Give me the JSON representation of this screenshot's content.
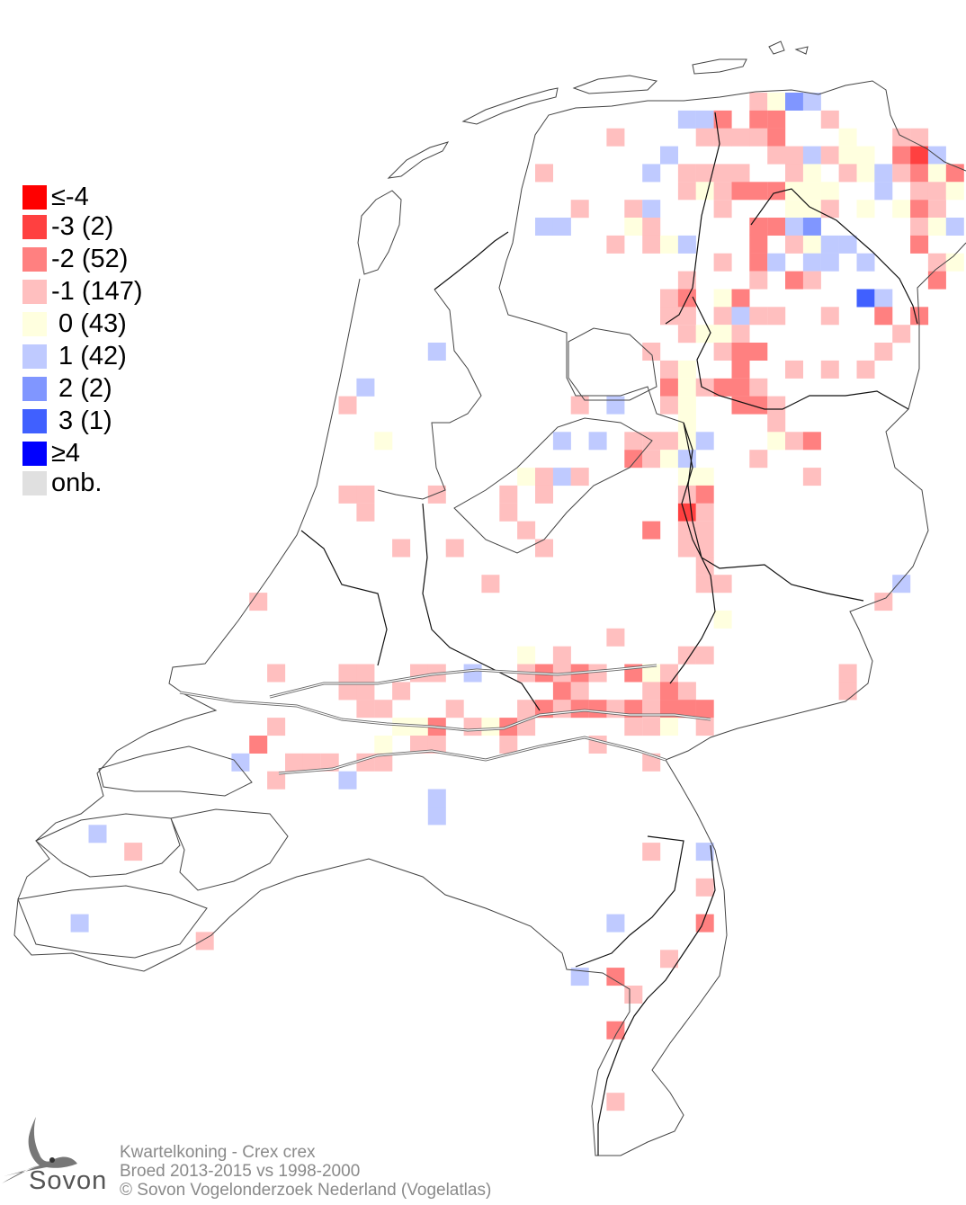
{
  "map": {
    "species": "Kwartelkoning - Crex crex",
    "period": "Broed 2013-2015 vs 1998-2000",
    "copyright": "© Sovon Vogelonderzoek Nederland (Vogelatlas)",
    "logo_text": "Sovon"
  },
  "legend": [
    {
      "label": "≤-4",
      "value": -4,
      "color": "#ff0000"
    },
    {
      "label": "-3 (2)",
      "value": -3,
      "color": "#ff4040"
    },
    {
      "label": "-2 (52)",
      "value": -2,
      "color": "#ff8080"
    },
    {
      "label": "-1 (147)",
      "value": -1,
      "color": "#ffbfbf"
    },
    {
      "label": " 0 (43)",
      "value": 0,
      "color": "#ffffdf"
    },
    {
      "label": " 1 (42)",
      "value": 1,
      "color": "#bfcaff"
    },
    {
      "label": " 2 (2)",
      "value": 2,
      "color": "#8096ff"
    },
    {
      "label": " 3 (1)",
      "value": 3,
      "color": "#4060ff"
    },
    {
      "label": "≥4",
      "value": 4,
      "color": "#0000ff"
    },
    {
      "label": "onb.",
      "value": null,
      "color": "#e0e0e0"
    }
  ],
  "grid_cells_col_row_value": [
    [
      41,
      5,
      -1
    ],
    [
      42,
      5,
      0
    ],
    [
      43,
      5,
      2
    ],
    [
      44,
      5,
      1
    ],
    [
      37,
      6,
      1
    ],
    [
      38,
      6,
      1
    ],
    [
      39,
      6,
      -2
    ],
    [
      41,
      6,
      -2
    ],
    [
      42,
      6,
      -2
    ],
    [
      45,
      6,
      -1
    ],
    [
      33,
      7,
      -1
    ],
    [
      38,
      7,
      -1
    ],
    [
      39,
      7,
      -1
    ],
    [
      40,
      7,
      -1
    ],
    [
      41,
      7,
      -1
    ],
    [
      42,
      7,
      -2
    ],
    [
      46,
      7,
      0
    ],
    [
      49,
      7,
      -1
    ],
    [
      50,
      7,
      -1
    ],
    [
      36,
      8,
      1
    ],
    [
      42,
      8,
      -1
    ],
    [
      43,
      8,
      -1
    ],
    [
      44,
      8,
      1
    ],
    [
      45,
      8,
      -1
    ],
    [
      46,
      8,
      0
    ],
    [
      47,
      8,
      0
    ],
    [
      49,
      8,
      -2
    ],
    [
      50,
      8,
      -3
    ],
    [
      51,
      8,
      1
    ],
    [
      29,
      9,
      -1
    ],
    [
      35,
      9,
      1
    ],
    [
      37,
      9,
      -1
    ],
    [
      38,
      9,
      -1
    ],
    [
      39,
      9,
      -1
    ],
    [
      40,
      9,
      -1
    ],
    [
      43,
      9,
      -1
    ],
    [
      44,
      9,
      0
    ],
    [
      46,
      9,
      -1
    ],
    [
      47,
      9,
      0
    ],
    [
      48,
      9,
      1
    ],
    [
      49,
      9,
      -1
    ],
    [
      50,
      9,
      -2
    ],
    [
      51,
      9,
      0
    ],
    [
      52,
      9,
      -2
    ],
    [
      37,
      10,
      -1
    ],
    [
      38,
      10,
      0
    ],
    [
      39,
      10,
      -1
    ],
    [
      40,
      10,
      -2
    ],
    [
      41,
      10,
      -2
    ],
    [
      42,
      10,
      -2
    ],
    [
      43,
      10,
      0
    ],
    [
      44,
      10,
      0
    ],
    [
      45,
      10,
      0
    ],
    [
      48,
      10,
      1
    ],
    [
      50,
      10,
      -1
    ],
    [
      51,
      10,
      -1
    ],
    [
      52,
      10,
      0
    ],
    [
      31,
      11,
      -1
    ],
    [
      34,
      11,
      -1
    ],
    [
      35,
      11,
      1
    ],
    [
      39,
      11,
      -1
    ],
    [
      43,
      11,
      0
    ],
    [
      44,
      11,
      0
    ],
    [
      45,
      11,
      -1
    ],
    [
      47,
      11,
      0
    ],
    [
      49,
      11,
      0
    ],
    [
      50,
      11,
      -2
    ],
    [
      51,
      11,
      -1
    ],
    [
      29,
      12,
      1
    ],
    [
      30,
      12,
      1
    ],
    [
      34,
      12,
      0
    ],
    [
      35,
      12,
      -1
    ],
    [
      41,
      12,
      -2
    ],
    [
      42,
      12,
      -2
    ],
    [
      43,
      12,
      1
    ],
    [
      44,
      12,
      2
    ],
    [
      50,
      12,
      -1
    ],
    [
      51,
      12,
      0
    ],
    [
      52,
      12,
      1
    ],
    [
      33,
      13,
      -1
    ],
    [
      35,
      13,
      -1
    ],
    [
      36,
      13,
      0
    ],
    [
      37,
      13,
      1
    ],
    [
      41,
      13,
      -2
    ],
    [
      43,
      13,
      -1
    ],
    [
      44,
      13,
      0
    ],
    [
      45,
      13,
      1
    ],
    [
      46,
      13,
      1
    ],
    [
      50,
      13,
      -2
    ],
    [
      39,
      14,
      -1
    ],
    [
      41,
      14,
      -2
    ],
    [
      42,
      14,
      1
    ],
    [
      44,
      14,
      1
    ],
    [
      45,
      14,
      1
    ],
    [
      47,
      14,
      1
    ],
    [
      51,
      14,
      -1
    ],
    [
      52,
      14,
      0
    ],
    [
      37,
      15,
      -1
    ],
    [
      41,
      15,
      -1
    ],
    [
      43,
      15,
      -2
    ],
    [
      44,
      15,
      -1
    ],
    [
      51,
      15,
      -2
    ],
    [
      36,
      16,
      -1
    ],
    [
      37,
      16,
      -2
    ],
    [
      39,
      16,
      0
    ],
    [
      40,
      16,
      -2
    ],
    [
      47,
      16,
      3
    ],
    [
      48,
      16,
      1
    ],
    [
      36,
      17,
      -1
    ],
    [
      37,
      17,
      -1
    ],
    [
      39,
      17,
      -1
    ],
    [
      40,
      17,
      1
    ],
    [
      41,
      17,
      -1
    ],
    [
      42,
      17,
      -1
    ],
    [
      45,
      17,
      -1
    ],
    [
      48,
      17,
      -2
    ],
    [
      50,
      17,
      -2
    ],
    [
      37,
      18,
      -1
    ],
    [
      38,
      18,
      0
    ],
    [
      39,
      18,
      0
    ],
    [
      40,
      18,
      -1
    ],
    [
      49,
      18,
      -1
    ],
    [
      23,
      19,
      1
    ],
    [
      35,
      19,
      -1
    ],
    [
      39,
      19,
      -1
    ],
    [
      40,
      19,
      -2
    ],
    [
      41,
      19,
      -2
    ],
    [
      48,
      19,
      -1
    ],
    [
      36,
      20,
      -1
    ],
    [
      37,
      20,
      0
    ],
    [
      40,
      20,
      -2
    ],
    [
      43,
      20,
      -1
    ],
    [
      45,
      20,
      -1
    ],
    [
      47,
      20,
      -1
    ],
    [
      19,
      21,
      1
    ],
    [
      36,
      21,
      -2
    ],
    [
      37,
      21,
      0
    ],
    [
      38,
      21,
      -1
    ],
    [
      39,
      21,
      -2
    ],
    [
      40,
      21,
      -2
    ],
    [
      41,
      21,
      -1
    ],
    [
      18,
      22,
      -1
    ],
    [
      31,
      22,
      -1
    ],
    [
      33,
      22,
      1
    ],
    [
      36,
      22,
      -1
    ],
    [
      37,
      22,
      0
    ],
    [
      40,
      22,
      -2
    ],
    [
      41,
      22,
      -2
    ],
    [
      42,
      22,
      -1
    ],
    [
      37,
      23,
      0
    ],
    [
      42,
      23,
      -1
    ],
    [
      20,
      24,
      0
    ],
    [
      30,
      24,
      1
    ],
    [
      32,
      24,
      1
    ],
    [
      34,
      24,
      -1
    ],
    [
      35,
      24,
      -1
    ],
    [
      36,
      24,
      -1
    ],
    [
      37,
      24,
      0
    ],
    [
      38,
      24,
      1
    ],
    [
      42,
      24,
      0
    ],
    [
      43,
      24,
      -1
    ],
    [
      44,
      24,
      -2
    ],
    [
      34,
      25,
      -2
    ],
    [
      35,
      25,
      -1
    ],
    [
      36,
      25,
      0
    ],
    [
      37,
      25,
      1
    ],
    [
      41,
      25,
      -1
    ],
    [
      28,
      26,
      0
    ],
    [
      29,
      26,
      -1
    ],
    [
      30,
      26,
      1
    ],
    [
      31,
      26,
      -1
    ],
    [
      37,
      26,
      0
    ],
    [
      38,
      26,
      0
    ],
    [
      44,
      26,
      -1
    ],
    [
      18,
      27,
      -1
    ],
    [
      19,
      27,
      -1
    ],
    [
      23,
      27,
      -1
    ],
    [
      27,
      27,
      -1
    ],
    [
      29,
      27,
      -1
    ],
    [
      37,
      27,
      -1
    ],
    [
      38,
      27,
      -2
    ],
    [
      19,
      28,
      -1
    ],
    [
      27,
      28,
      -1
    ],
    [
      37,
      28,
      -3
    ],
    [
      38,
      28,
      -1
    ],
    [
      28,
      29,
      -1
    ],
    [
      35,
      29,
      -2
    ],
    [
      37,
      29,
      -1
    ],
    [
      38,
      29,
      -1
    ],
    [
      21,
      30,
      -1
    ],
    [
      24,
      30,
      -1
    ],
    [
      29,
      30,
      -1
    ],
    [
      37,
      30,
      -1
    ],
    [
      38,
      30,
      -1
    ],
    [
      38,
      31,
      -1
    ],
    [
      26,
      32,
      -1
    ],
    [
      38,
      32,
      -1
    ],
    [
      39,
      32,
      -1
    ],
    [
      49,
      32,
      1
    ],
    [
      13,
      33,
      -1
    ],
    [
      48,
      33,
      -1
    ],
    [
      39,
      34,
      0
    ],
    [
      33,
      35,
      -1
    ],
    [
      28,
      36,
      0
    ],
    [
      30,
      36,
      -1
    ],
    [
      37,
      36,
      -1
    ],
    [
      38,
      36,
      -1
    ],
    [
      14,
      37,
      -1
    ],
    [
      18,
      37,
      -1
    ],
    [
      19,
      37,
      -1
    ],
    [
      22,
      37,
      -1
    ],
    [
      23,
      37,
      -1
    ],
    [
      25,
      37,
      1
    ],
    [
      28,
      37,
      -1
    ],
    [
      29,
      37,
      -2
    ],
    [
      30,
      37,
      -1
    ],
    [
      31,
      37,
      -2
    ],
    [
      32,
      37,
      -1
    ],
    [
      34,
      37,
      -2
    ],
    [
      35,
      37,
      0
    ],
    [
      36,
      37,
      -1
    ],
    [
      46,
      37,
      -1
    ],
    [
      18,
      38,
      -1
    ],
    [
      19,
      38,
      -1
    ],
    [
      21,
      38,
      -1
    ],
    [
      30,
      38,
      -2
    ],
    [
      31,
      38,
      -1
    ],
    [
      35,
      38,
      -1
    ],
    [
      36,
      38,
      -2
    ],
    [
      37,
      38,
      -1
    ],
    [
      46,
      38,
      -1
    ],
    [
      19,
      39,
      -1
    ],
    [
      20,
      39,
      -1
    ],
    [
      24,
      39,
      -1
    ],
    [
      28,
      39,
      -1
    ],
    [
      29,
      39,
      -2
    ],
    [
      30,
      39,
      -1
    ],
    [
      31,
      39,
      -2
    ],
    [
      32,
      39,
      -2
    ],
    [
      33,
      39,
      -1
    ],
    [
      34,
      39,
      -2
    ],
    [
      35,
      39,
      -1
    ],
    [
      36,
      39,
      -2
    ],
    [
      37,
      39,
      -2
    ],
    [
      38,
      39,
      -2
    ],
    [
      14,
      40,
      -1
    ],
    [
      21,
      40,
      0
    ],
    [
      22,
      40,
      0
    ],
    [
      23,
      40,
      -2
    ],
    [
      25,
      40,
      -1
    ],
    [
      26,
      40,
      0
    ],
    [
      27,
      40,
      -2
    ],
    [
      28,
      40,
      -1
    ],
    [
      34,
      40,
      -1
    ],
    [
      35,
      40,
      -1
    ],
    [
      36,
      40,
      0
    ],
    [
      38,
      40,
      -1
    ],
    [
      13,
      41,
      -2
    ],
    [
      20,
      41,
      0
    ],
    [
      22,
      41,
      -1
    ],
    [
      23,
      41,
      -1
    ],
    [
      27,
      41,
      -1
    ],
    [
      32,
      41,
      -1
    ],
    [
      12,
      42,
      1
    ],
    [
      15,
      42,
      -1
    ],
    [
      16,
      42,
      -1
    ],
    [
      17,
      42,
      -1
    ],
    [
      19,
      42,
      -1
    ],
    [
      20,
      42,
      -1
    ],
    [
      35,
      42,
      -1
    ],
    [
      14,
      43,
      -1
    ],
    [
      18,
      43,
      1
    ],
    [
      23,
      44,
      1
    ],
    [
      23,
      45,
      1
    ],
    [
      4,
      46,
      1
    ],
    [
      6,
      47,
      -1
    ],
    [
      35,
      47,
      -1
    ],
    [
      38,
      47,
      1
    ],
    [
      38,
      49,
      -1
    ],
    [
      3,
      51,
      1
    ],
    [
      33,
      51,
      1
    ],
    [
      38,
      51,
      -2
    ],
    [
      10,
      52,
      -1
    ],
    [
      36,
      53,
      -1
    ],
    [
      31,
      54,
      1
    ],
    [
      33,
      54,
      -2
    ],
    [
      34,
      55,
      -1
    ],
    [
      33,
      57,
      -2
    ],
    [
      33,
      61,
      -1
    ]
  ]
}
